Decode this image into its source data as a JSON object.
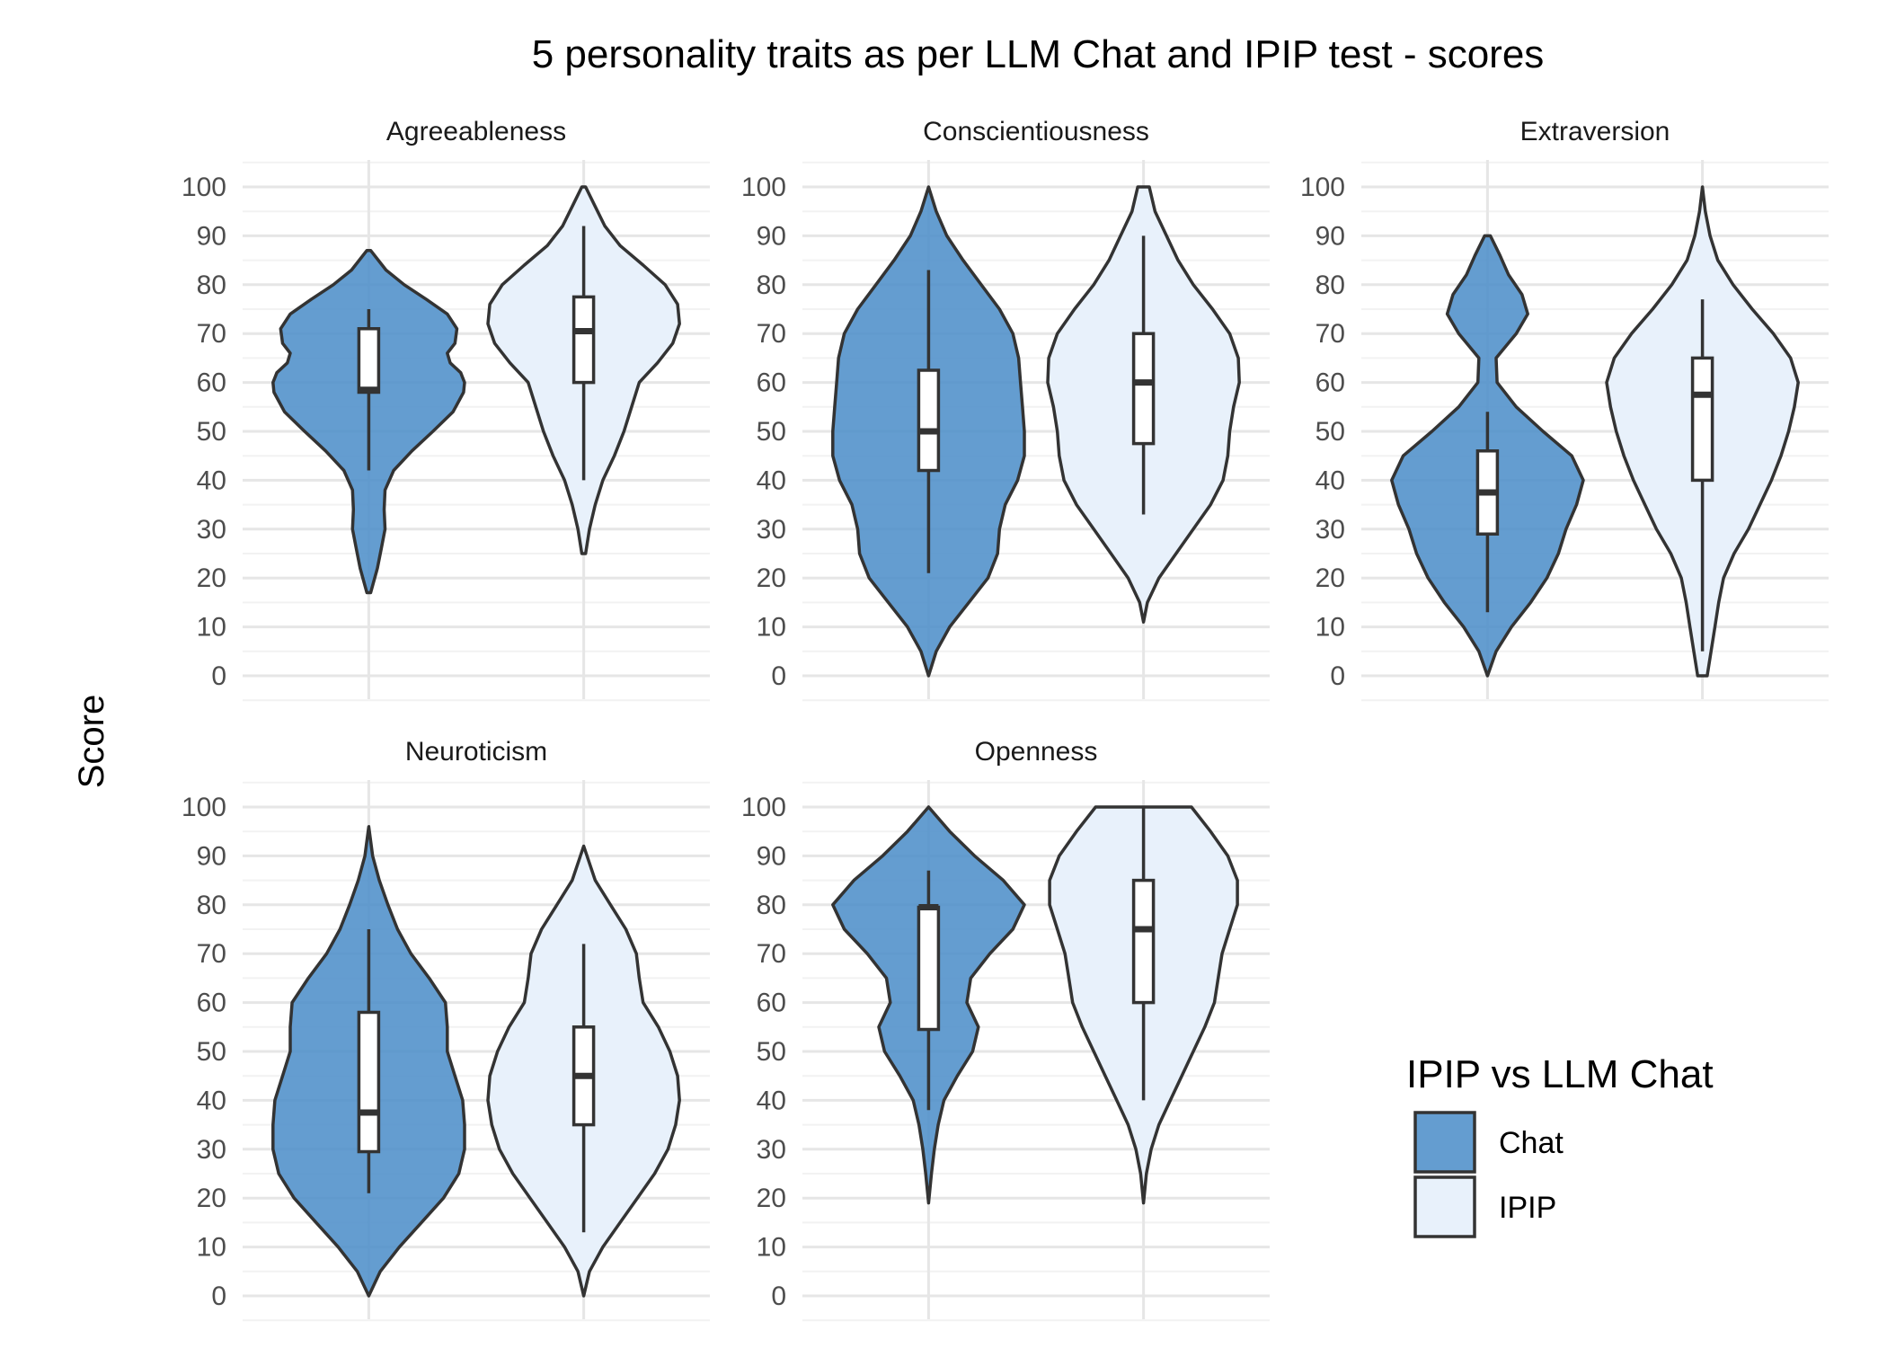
{
  "chart_data": {
    "type": "violin",
    "title": "5 personality traits as per LLM Chat and IPIP test - scores",
    "ylabel": "Score",
    "xlabel": "",
    "ylim": [
      0,
      100
    ],
    "yticks": [
      0,
      10,
      20,
      30,
      40,
      50,
      60,
      70,
      80,
      90,
      100
    ],
    "grid": true,
    "legend": {
      "title": "IPIP vs LLM Chat",
      "position": "right",
      "entries": [
        {
          "name": "Chat",
          "color": "#4f8fca"
        },
        {
          "name": "IPIP",
          "color": "#e8f1fb"
        }
      ]
    },
    "panels": [
      {
        "trait": "Agreeableness",
        "groups": [
          {
            "name": "Chat",
            "box": {
              "lower_whisker": 42,
              "q1": 58,
              "median": 58.5,
              "q3": 71,
              "upper_whisker": 75
            },
            "violin": [
              [
                17,
                0.02
              ],
              [
                22,
                0.09
              ],
              [
                26,
                0.13
              ],
              [
                30,
                0.17
              ],
              [
                34,
                0.16
              ],
              [
                38,
                0.17
              ],
              [
                42,
                0.26
              ],
              [
                46,
                0.45
              ],
              [
                50,
                0.67
              ],
              [
                54,
                0.88
              ],
              [
                58,
                0.99
              ],
              [
                60,
                1.0
              ],
              [
                62,
                0.96
              ],
              [
                64,
                0.85
              ],
              [
                66,
                0.82
              ],
              [
                68,
                0.9
              ],
              [
                71,
                0.92
              ],
              [
                74,
                0.82
              ],
              [
                77,
                0.6
              ],
              [
                80,
                0.37
              ],
              [
                83,
                0.18
              ],
              [
                87,
                0.02
              ]
            ]
          },
          {
            "name": "IPIP",
            "box": {
              "lower_whisker": 40,
              "q1": 60,
              "median": 70.5,
              "q3": 77.5,
              "upper_whisker": 92
            },
            "violin": [
              [
                25,
                0.02
              ],
              [
                30,
                0.06
              ],
              [
                35,
                0.12
              ],
              [
                40,
                0.2
              ],
              [
                45,
                0.32
              ],
              [
                50,
                0.42
              ],
              [
                55,
                0.5
              ],
              [
                60,
                0.58
              ],
              [
                64,
                0.77
              ],
              [
                68,
                0.93
              ],
              [
                72,
                1.0
              ],
              [
                76,
                0.98
              ],
              [
                80,
                0.85
              ],
              [
                84,
                0.62
              ],
              [
                88,
                0.38
              ],
              [
                92,
                0.22
              ],
              [
                96,
                0.12
              ],
              [
                100,
                0.02
              ]
            ]
          }
        ]
      },
      {
        "trait": "Conscientiousness",
        "groups": [
          {
            "name": "Chat",
            "box": {
              "lower_whisker": 21,
              "q1": 42,
              "median": 50,
              "q3": 62.5,
              "upper_whisker": 83
            },
            "violin": [
              [
                0,
                0.0
              ],
              [
                5,
                0.08
              ],
              [
                10,
                0.22
              ],
              [
                15,
                0.42
              ],
              [
                20,
                0.62
              ],
              [
                25,
                0.72
              ],
              [
                30,
                0.74
              ],
              [
                35,
                0.8
              ],
              [
                40,
                0.93
              ],
              [
                45,
                1.0
              ],
              [
                50,
                1.0
              ],
              [
                55,
                0.98
              ],
              [
                60,
                0.96
              ],
              [
                65,
                0.94
              ],
              [
                70,
                0.88
              ],
              [
                75,
                0.74
              ],
              [
                80,
                0.55
              ],
              [
                85,
                0.36
              ],
              [
                90,
                0.19
              ],
              [
                95,
                0.08
              ],
              [
                100,
                0.0
              ]
            ]
          },
          {
            "name": "IPIP",
            "box": {
              "lower_whisker": 33,
              "q1": 47.5,
              "median": 60,
              "q3": 70,
              "upper_whisker": 90
            },
            "violin": [
              [
                11,
                0.0
              ],
              [
                15,
                0.04
              ],
              [
                20,
                0.16
              ],
              [
                25,
                0.34
              ],
              [
                30,
                0.52
              ],
              [
                35,
                0.7
              ],
              [
                40,
                0.83
              ],
              [
                45,
                0.88
              ],
              [
                50,
                0.9
              ],
              [
                55,
                0.94
              ],
              [
                60,
                1.0
              ],
              [
                65,
                0.99
              ],
              [
                70,
                0.9
              ],
              [
                75,
                0.72
              ],
              [
                80,
                0.52
              ],
              [
                85,
                0.36
              ],
              [
                90,
                0.24
              ],
              [
                95,
                0.12
              ],
              [
                100,
                0.06
              ]
            ]
          }
        ]
      },
      {
        "trait": "Extraversion",
        "groups": [
          {
            "name": "Chat",
            "box": {
              "lower_whisker": 13,
              "q1": 29,
              "median": 37.5,
              "q3": 46,
              "upper_whisker": 54
            },
            "violin": [
              [
                0,
                0.0
              ],
              [
                5,
                0.09
              ],
              [
                10,
                0.25
              ],
              [
                15,
                0.45
              ],
              [
                20,
                0.62
              ],
              [
                25,
                0.74
              ],
              [
                30,
                0.82
              ],
              [
                35,
                0.93
              ],
              [
                40,
                1.0
              ],
              [
                45,
                0.88
              ],
              [
                50,
                0.58
              ],
              [
                55,
                0.3
              ],
              [
                60,
                0.1
              ],
              [
                65,
                0.09
              ],
              [
                70,
                0.3
              ],
              [
                74,
                0.42
              ],
              [
                78,
                0.36
              ],
              [
                82,
                0.22
              ],
              [
                86,
                0.13
              ],
              [
                90,
                0.03
              ]
            ]
          },
          {
            "name": "IPIP",
            "box": {
              "lower_whisker": 5,
              "q1": 40,
              "median": 57.5,
              "q3": 65,
              "upper_whisker": 77
            },
            "violin": [
              [
                0,
                0.05
              ],
              [
                5,
                0.09
              ],
              [
                10,
                0.13
              ],
              [
                15,
                0.17
              ],
              [
                20,
                0.22
              ],
              [
                25,
                0.33
              ],
              [
                30,
                0.48
              ],
              [
                35,
                0.6
              ],
              [
                40,
                0.72
              ],
              [
                45,
                0.82
              ],
              [
                50,
                0.9
              ],
              [
                55,
                0.96
              ],
              [
                60,
                1.0
              ],
              [
                65,
                0.92
              ],
              [
                70,
                0.74
              ],
              [
                75,
                0.52
              ],
              [
                80,
                0.32
              ],
              [
                85,
                0.16
              ],
              [
                90,
                0.08
              ],
              [
                95,
                0.03
              ],
              [
                100,
                0.0
              ]
            ]
          }
        ]
      },
      {
        "trait": "Neuroticism",
        "groups": [
          {
            "name": "Chat",
            "box": {
              "lower_whisker": 21,
              "q1": 29.5,
              "median": 37.5,
              "q3": 58,
              "upper_whisker": 75
            },
            "violin": [
              [
                0,
                0.0
              ],
              [
                5,
                0.12
              ],
              [
                10,
                0.32
              ],
              [
                15,
                0.55
              ],
              [
                20,
                0.78
              ],
              [
                25,
                0.94
              ],
              [
                30,
                1.0
              ],
              [
                35,
                1.0
              ],
              [
                40,
                0.98
              ],
              [
                45,
                0.9
              ],
              [
                50,
                0.82
              ],
              [
                55,
                0.82
              ],
              [
                60,
                0.8
              ],
              [
                65,
                0.63
              ],
              [
                70,
                0.44
              ],
              [
                75,
                0.3
              ],
              [
                80,
                0.2
              ],
              [
                85,
                0.11
              ],
              [
                90,
                0.04
              ],
              [
                96,
                0.0
              ]
            ]
          },
          {
            "name": "IPIP",
            "box": {
              "lower_whisker": 13,
              "q1": 35,
              "median": 45,
              "q3": 55,
              "upper_whisker": 72
            },
            "violin": [
              [
                0,
                0.0
              ],
              [
                5,
                0.06
              ],
              [
                10,
                0.2
              ],
              [
                15,
                0.38
              ],
              [
                20,
                0.56
              ],
              [
                25,
                0.74
              ],
              [
                30,
                0.88
              ],
              [
                35,
                0.96
              ],
              [
                40,
                1.0
              ],
              [
                45,
                0.98
              ],
              [
                50,
                0.9
              ],
              [
                55,
                0.78
              ],
              [
                60,
                0.62
              ],
              [
                65,
                0.58
              ],
              [
                70,
                0.55
              ],
              [
                75,
                0.44
              ],
              [
                80,
                0.28
              ],
              [
                85,
                0.12
              ],
              [
                92,
                0.0
              ]
            ]
          }
        ]
      },
      {
        "trait": "Openness",
        "groups": [
          {
            "name": "Chat",
            "box": {
              "lower_whisker": 38,
              "q1": 54.5,
              "median": 79.5,
              "q3": 79.5,
              "upper_whisker": 87
            },
            "violin": [
              [
                19,
                0.0
              ],
              [
                25,
                0.03
              ],
              [
                30,
                0.06
              ],
              [
                35,
                0.1
              ],
              [
                40,
                0.16
              ],
              [
                45,
                0.3
              ],
              [
                50,
                0.46
              ],
              [
                55,
                0.52
              ],
              [
                60,
                0.4
              ],
              [
                65,
                0.44
              ],
              [
                70,
                0.64
              ],
              [
                75,
                0.88
              ],
              [
                80,
                1.0
              ],
              [
                85,
                0.78
              ],
              [
                90,
                0.48
              ],
              [
                95,
                0.22
              ],
              [
                100,
                0.0
              ]
            ]
          },
          {
            "name": "IPIP",
            "box": {
              "lower_whisker": 40,
              "q1": 60,
              "median": 75,
              "q3": 85,
              "upper_whisker": 100
            },
            "violin": [
              [
                19,
                0.0
              ],
              [
                25,
                0.03
              ],
              [
                30,
                0.08
              ],
              [
                35,
                0.16
              ],
              [
                40,
                0.28
              ],
              [
                45,
                0.4
              ],
              [
                50,
                0.52
              ],
              [
                55,
                0.64
              ],
              [
                60,
                0.74
              ],
              [
                65,
                0.78
              ],
              [
                70,
                0.82
              ],
              [
                75,
                0.9
              ],
              [
                80,
                0.98
              ],
              [
                85,
                0.98
              ],
              [
                90,
                0.88
              ],
              [
                95,
                0.7
              ],
              [
                100,
                0.5
              ]
            ]
          }
        ]
      }
    ]
  }
}
